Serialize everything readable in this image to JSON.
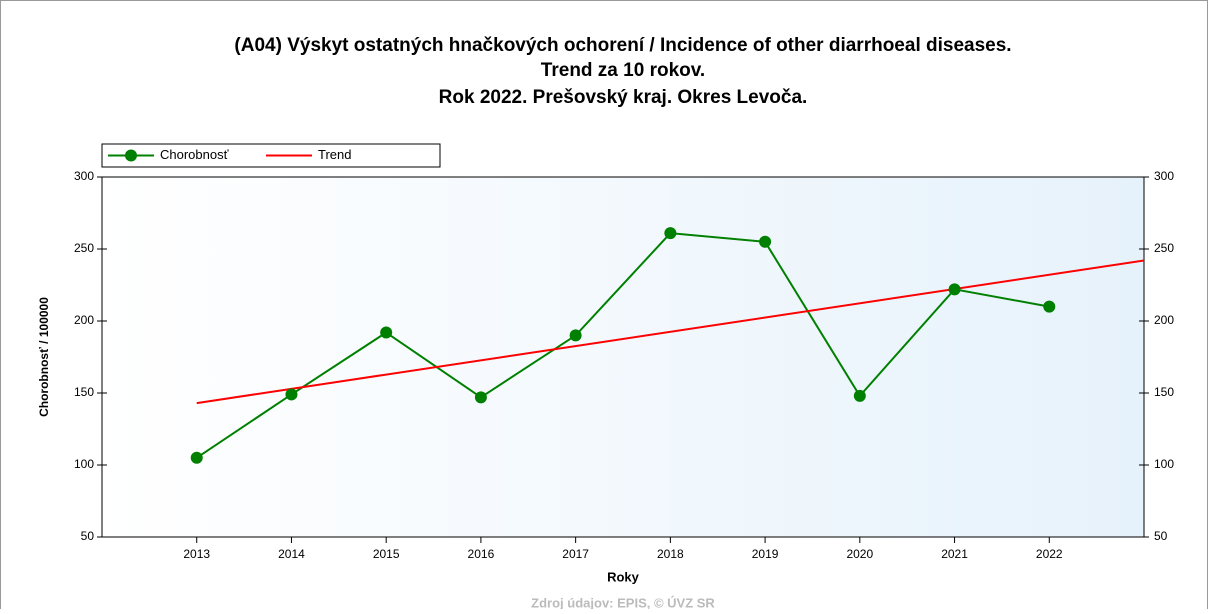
{
  "chart_data": {
    "type": "line",
    "title": [
      "(A04) Výskyt ostatných hnačkových ochorení / Incidence of other diarrhoeal diseases.",
      "Trend za 10 rokov.",
      "Rok 2022. Prešovský kraj. Okres Levoča."
    ],
    "xlabel": "Roky",
    "ylabel": "Chorobnosť / 100000",
    "source": "Zdroj údajov: EPIS, © ÚVZ SR",
    "xlim": [
      2012,
      2023
    ],
    "xticks": [
      2013,
      2014,
      2015,
      2016,
      2017,
      2018,
      2019,
      2020,
      2021,
      2022
    ],
    "ylim": [
      50,
      300
    ],
    "yticks": [
      50,
      100,
      150,
      200,
      250,
      300
    ],
    "legend": "top-left",
    "series": [
      {
        "name": "Chorobnosť",
        "color": "#008000",
        "marker": true,
        "x": [
          2013,
          2014,
          2015,
          2016,
          2017,
          2018,
          2019,
          2020,
          2021,
          2022
        ],
        "values": [
          105,
          149,
          192,
          147,
          190,
          261,
          255,
          148,
          222,
          210
        ]
      },
      {
        "name": "Trend",
        "color": "#ff0000",
        "marker": false,
        "x": [
          2013,
          2023
        ],
        "values": [
          143,
          242
        ]
      }
    ]
  }
}
